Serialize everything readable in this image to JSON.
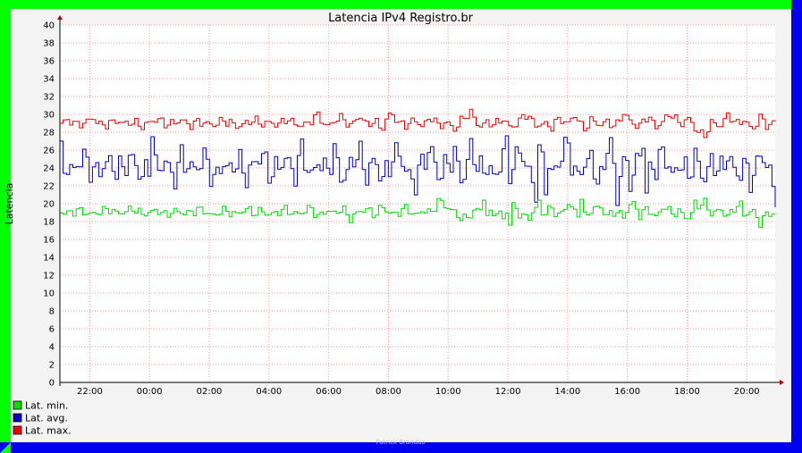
{
  "colors": {
    "border_left": "#00ff00",
    "border_top": "#00ff00",
    "border_right": "#0000ee",
    "border_bottom": "#0000ee",
    "canvas_bg": "#f3f3f3",
    "plot_bg": "#ffffff",
    "grid": "#ff9999",
    "axis_arrow": "#aa0000"
  },
  "watermark": "Patrick Brandao",
  "chart_data": {
    "type": "line",
    "title": "Latencia IPv4 Registro.br",
    "xlabel": "",
    "ylabel": "Latencia",
    "ylim": [
      0,
      40
    ],
    "yticks": [
      0,
      2,
      4,
      6,
      8,
      10,
      12,
      14,
      16,
      18,
      20,
      22,
      24,
      26,
      28,
      30,
      32,
      34,
      36,
      38,
      40
    ],
    "xticks": [
      "22:00",
      "00:00",
      "02:00",
      "04:00",
      "06:00",
      "08:00",
      "10:00",
      "12:00",
      "14:00",
      "16:00",
      "18:00",
      "20:00"
    ],
    "xlim_hours": [
      21.0,
      44.95
    ],
    "xtick_hours": [
      22,
      24,
      26,
      28,
      30,
      32,
      34,
      36,
      38,
      40,
      42,
      44
    ],
    "grid": true,
    "legend_position": "bottom-left",
    "series": [
      {
        "name": "Lat. max.",
        "color": "#ee0000",
        "values": [
          29.0,
          29.4,
          28.8,
          29.1,
          29.6,
          28.7,
          29.0,
          29.3,
          28.9,
          29.2,
          28.6,
          29.1,
          29.5,
          28.9,
          29.0,
          29.4,
          28.7,
          29.2,
          29.0,
          28.8,
          29.3,
          29.1,
          28.6,
          29.0,
          29.4,
          28.9,
          29.1,
          28.8,
          29.5,
          29.0,
          28.7,
          29.2,
          30.0,
          28.5,
          29.3,
          29.7,
          28.6,
          29.9,
          28.9,
          29.2,
          28.4,
          30.3,
          29.0,
          28.8,
          29.4,
          28.6,
          29.8,
          28.7,
          29.1,
          28.3,
          29.6,
          30.2,
          28.6,
          29.1,
          28.9,
          29.5,
          28.4,
          29.3,
          30.1,
          28.7,
          29.0,
          28.5,
          29.6,
          28.9,
          30.0,
          28.2,
          29.4,
          28.8,
          29.2,
          28.6,
          30.2,
          29.0,
          28.7,
          29.9,
          28.5,
          29.4,
          30.1,
          28.8,
          29.6,
          28.3,
          27.5,
          29.2,
          28.6,
          30.0,
          28.9,
          29.4,
          28.2,
          29.7,
          28.6,
          29.3
        ],
        "spikes": []
      },
      {
        "name": "Lat. avg.",
        "color": "#0000cc",
        "values": [
          25.6,
          23.2,
          24.5,
          25.2,
          23.4,
          24.0,
          24.7,
          23.6,
          24.4,
          25.1,
          22.8,
          24.3,
          23.9,
          24.8,
          22.6,
          25.4,
          23.8,
          24.2,
          25.3,
          22.4,
          24.6,
          23.7,
          25.0,
          22.9,
          24.5,
          25.6,
          23.3,
          24.1,
          25.2,
          23.0,
          26.3,
          22.7,
          24.9,
          23.5,
          25.8,
          22.5,
          24.3,
          26.0,
          23.1,
          25.0,
          22.6,
          24.7,
          25.9,
          23.4,
          22.2,
          24.8,
          26.1,
          23.0,
          24.5,
          25.4,
          22.3,
          26.5,
          23.6,
          24.2,
          22.7,
          25.7,
          23.3,
          26.2,
          24.0,
          21.4,
          25.5,
          23.1,
          24.9,
          26.4,
          22.8,
          24.3,
          25.1,
          21.8,
          26.6,
          23.4,
          24.6,
          22.5,
          25.8,
          23.6,
          24.1,
          26.0,
          22.9,
          24.7,
          23.2,
          25.3,
          22.6,
          24.9,
          23.5,
          25.6,
          23.0,
          24.3,
          22.4,
          25.8,
          23.8,
          21.0
        ],
        "spikes": [
          [
            24.03,
            27.5
          ],
          [
            35.94,
            27.6
          ],
          [
            36.99,
            26.6
          ],
          [
            37.26,
            21.0
          ],
          [
            38.02,
            26.8
          ],
          [
            39.41,
            27.4
          ],
          [
            39.63,
            19.8
          ],
          [
            40.47,
            26.2
          ],
          [
            40.56,
            21.2
          ]
        ]
      },
      {
        "name": "Lat. min.",
        "color": "#00dd00",
        "values": [
          19.1,
          18.9,
          19.3,
          19.0,
          18.8,
          19.2,
          19.4,
          18.9,
          19.1,
          19.5,
          18.8,
          19.0,
          19.3,
          18.7,
          19.2,
          19.0,
          18.9,
          19.4,
          19.1,
          18.6,
          19.3,
          19.0,
          18.8,
          19.5,
          18.9,
          19.2,
          18.7,
          19.1,
          19.4,
          18.8,
          19.0,
          19.6,
          18.5,
          19.3,
          18.9,
          19.5,
          18.3,
          19.1,
          19.4,
          18.7,
          19.7,
          18.8,
          19.0,
          19.6,
          18.6,
          19.3,
          18.9,
          20.4,
          19.6,
          19.0,
          18.2,
          18.8,
          19.5,
          18.6,
          19.2,
          18.4,
          20.2,
          18.9,
          18.3,
          19.4,
          18.8,
          19.6,
          18.5,
          20.1,
          19.0,
          18.4,
          19.3,
          19.7,
          18.6,
          19.2,
          18.5,
          20.3,
          18.7,
          19.5,
          18.4,
          19.8,
          18.9,
          19.1,
          18.3,
          19.6,
          20.2,
          18.8,
          19.4,
          18.5,
          19.9,
          18.7,
          19.3,
          17.8,
          19.1,
          18.6
        ],
        "spikes": [
          [
            35.1,
            20.4
          ],
          [
            36.01,
            17.6
          ],
          [
            37.04,
            20.4
          ],
          [
            38.4,
            20.5
          ],
          [
            42.2,
            20.4
          ],
          [
            43.7,
            20.3
          ]
        ]
      }
    ]
  }
}
